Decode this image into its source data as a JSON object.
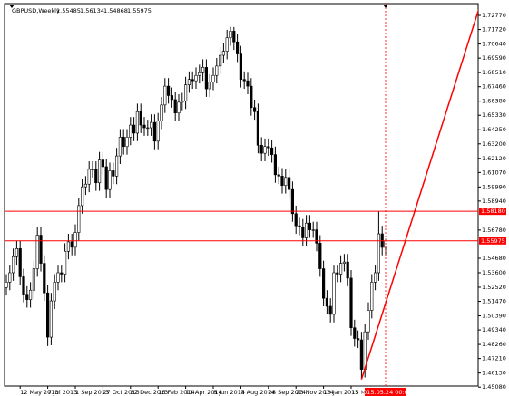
{
  "chart_data": {
    "type": "candlestick",
    "title": "GBPUSD,Weekly",
    "categories": [
      null,
      null,
      null,
      null,
      "12 May 2013",
      null,
      null,
      null,
      null,
      null,
      null,
      null,
      "7 Jul 2013",
      null,
      null,
      null,
      null,
      null,
      null,
      null,
      "1 Sep 2013",
      null,
      null,
      null,
      null,
      null,
      null,
      null,
      "27 Oct 2013",
      null,
      null,
      null,
      null,
      null,
      null,
      null,
      "22 Dec 2013",
      null,
      null,
      null,
      null,
      null,
      null,
      null,
      "16 Feb 2014",
      null,
      null,
      null,
      null,
      null,
      null,
      null,
      "13 Apr 2014",
      null,
      null,
      null,
      null,
      null,
      null,
      null,
      "8 Jun 2014",
      null,
      null,
      null,
      null,
      null,
      null,
      null,
      "3 Aug 2014",
      null,
      null,
      null,
      null,
      null,
      null,
      null,
      "28 Sep 2014",
      null,
      null,
      null,
      null,
      null,
      null,
      null,
      "23 Nov 2014",
      null,
      null,
      null,
      null,
      null,
      null,
      null,
      "18 Jan 2015",
      null,
      null,
      null,
      null,
      null,
      null,
      null,
      "15 Mar 2015",
      null,
      null,
      null,
      null,
      null,
      null,
      null,
      null,
      null,
      "2015.05.24 00:00"
    ],
    "open": [
      1.525,
      1.529,
      1.536,
      1.548,
      1.554,
      1.533,
      1.52,
      1.516,
      1.523,
      1.539,
      1.564,
      1.543,
      1.521,
      1.488,
      1.515,
      1.529,
      1.536,
      1.535,
      1.552,
      1.559,
      1.555,
      1.566,
      1.586,
      1.6,
      1.602,
      1.613,
      1.613,
      1.603,
      1.62,
      1.615,
      1.598,
      1.612,
      1.608,
      1.623,
      1.637,
      1.63,
      1.637,
      1.646,
      1.64,
      1.656,
      1.646,
      1.644,
      1.644,
      1.648,
      1.634,
      1.649,
      1.661,
      1.675,
      1.668,
      1.665,
      1.655,
      1.663,
      1.664,
      1.676,
      1.68,
      1.679,
      1.683,
      1.685,
      1.689,
      1.673,
      1.678,
      1.683,
      1.69,
      1.698,
      1.701,
      1.711,
      1.716,
      1.708,
      1.699,
      1.68,
      1.679,
      1.675,
      1.659,
      1.656,
      1.631,
      1.625,
      1.63,
      1.629,
      1.624,
      1.609,
      1.608,
      1.601,
      1.607,
      1.598,
      1.58,
      1.571,
      1.57,
      1.562,
      1.573,
      1.568,
      1.568,
      1.558,
      1.539,
      1.517,
      1.511,
      1.505,
      1.536,
      1.535,
      1.543,
      1.544,
      1.532,
      1.495,
      1.487,
      1.486,
      1.464,
      1.492,
      1.508,
      1.529,
      1.536,
      1.565,
      1.55485
    ],
    "high": [
      1.535,
      1.542,
      1.554,
      1.56,
      1.56,
      1.539,
      1.526,
      1.529,
      1.545,
      1.57,
      1.57,
      1.549,
      1.527,
      1.521,
      1.535,
      1.542,
      1.542,
      1.558,
      1.565,
      1.565,
      1.572,
      1.592,
      1.606,
      1.608,
      1.619,
      1.619,
      1.619,
      1.626,
      1.626,
      1.621,
      1.618,
      1.618,
      1.629,
      1.643,
      1.643,
      1.643,
      1.652,
      1.652,
      1.662,
      1.662,
      1.652,
      1.65,
      1.654,
      1.654,
      1.655,
      1.667,
      1.681,
      1.681,
      1.674,
      1.671,
      1.669,
      1.67,
      1.682,
      1.686,
      1.686,
      1.689,
      1.691,
      1.695,
      1.695,
      1.684,
      1.689,
      1.696,
      1.704,
      1.707,
      1.717,
      1.7192,
      1.719,
      1.714,
      1.705,
      1.686,
      1.685,
      1.681,
      1.665,
      1.662,
      1.637,
      1.636,
      1.636,
      1.635,
      1.63,
      1.615,
      1.614,
      1.613,
      1.613,
      1.604,
      1.586,
      1.577,
      1.576,
      1.579,
      1.579,
      1.574,
      1.574,
      1.564,
      1.545,
      1.523,
      1.517,
      1.542,
      1.542,
      1.549,
      1.55,
      1.55,
      1.538,
      1.501,
      1.493,
      1.492,
      1.498,
      1.514,
      1.535,
      1.542,
      1.5815,
      1.571,
      1.56134
    ],
    "low": [
      1.519,
      1.523,
      1.53,
      1.542,
      1.527,
      1.514,
      1.51,
      1.51,
      1.517,
      1.533,
      1.537,
      1.515,
      1.4814,
      1.482,
      1.509,
      1.523,
      1.529,
      1.529,
      1.546,
      1.549,
      1.549,
      1.56,
      1.58,
      1.594,
      1.596,
      1.607,
      1.597,
      1.597,
      1.609,
      1.592,
      1.592,
      1.602,
      1.602,
      1.617,
      1.624,
      1.624,
      1.631,
      1.634,
      1.634,
      1.64,
      1.638,
      1.638,
      1.638,
      1.628,
      1.628,
      1.643,
      1.655,
      1.662,
      1.659,
      1.649,
      1.649,
      1.657,
      1.658,
      1.67,
      1.673,
      1.673,
      1.677,
      1.679,
      1.667,
      1.667,
      1.672,
      1.677,
      1.684,
      1.692,
      1.695,
      1.705,
      1.702,
      1.693,
      1.674,
      1.673,
      1.669,
      1.653,
      1.65,
      1.625,
      1.619,
      1.619,
      1.623,
      1.618,
      1.603,
      1.602,
      1.595,
      1.595,
      1.592,
      1.574,
      1.565,
      1.564,
      1.556,
      1.556,
      1.562,
      1.562,
      1.552,
      1.533,
      1.511,
      1.505,
      1.499,
      1.499,
      1.529,
      1.529,
      1.537,
      1.526,
      1.489,
      1.481,
      1.48,
      1.4566,
      1.458,
      1.486,
      1.502,
      1.523,
      1.53,
      1.549,
      1.54868
    ],
    "close": [
      1.529,
      1.536,
      1.548,
      1.554,
      1.533,
      1.52,
      1.516,
      1.523,
      1.539,
      1.564,
      1.543,
      1.521,
      1.488,
      1.515,
      1.529,
      1.536,
      1.535,
      1.552,
      1.559,
      1.555,
      1.566,
      1.586,
      1.6,
      1.602,
      1.613,
      1.613,
      1.603,
      1.62,
      1.615,
      1.598,
      1.612,
      1.608,
      1.623,
      1.637,
      1.63,
      1.637,
      1.646,
      1.64,
      1.656,
      1.646,
      1.644,
      1.644,
      1.648,
      1.634,
      1.649,
      1.661,
      1.675,
      1.668,
      1.665,
      1.655,
      1.663,
      1.664,
      1.676,
      1.68,
      1.679,
      1.683,
      1.685,
      1.689,
      1.673,
      1.678,
      1.683,
      1.69,
      1.698,
      1.701,
      1.711,
      1.716,
      1.708,
      1.699,
      1.68,
      1.679,
      1.675,
      1.659,
      1.656,
      1.631,
      1.625,
      1.63,
      1.629,
      1.624,
      1.609,
      1.608,
      1.601,
      1.607,
      1.598,
      1.58,
      1.571,
      1.57,
      1.562,
      1.573,
      1.568,
      1.568,
      1.558,
      1.539,
      1.517,
      1.511,
      1.505,
      1.536,
      1.535,
      1.543,
      1.544,
      1.532,
      1.495,
      1.487,
      1.486,
      1.464,
      1.492,
      1.508,
      1.529,
      1.536,
      1.565,
      1.5549,
      1.55975
    ],
    "ylim": [
      1.4516,
      1.7365
    ],
    "yticks": [
      {
        "value": 1.7277,
        "label": "1.72770"
      },
      {
        "value": 1.7172,
        "label": "1.71720"
      },
      {
        "value": 1.7064,
        "label": "1.70640"
      },
      {
        "value": 1.6959,
        "label": "1.69590"
      },
      {
        "value": 1.6851,
        "label": "1.68510"
      },
      {
        "value": 1.6746,
        "label": "1.67460"
      },
      {
        "value": 1.6638,
        "label": "1.66380"
      },
      {
        "value": 1.6533,
        "label": "1.65330"
      },
      {
        "value": 1.6425,
        "label": "1.64250"
      },
      {
        "value": 1.632,
        "label": "1.63200"
      },
      {
        "value": 1.6212,
        "label": "1.62120"
      },
      {
        "value": 1.6107,
        "label": "1.61070"
      },
      {
        "value": 1.5999,
        "label": "1.59990"
      },
      {
        "value": 1.5894,
        "label": "1.58940"
      },
      {
        "value": 1.5678,
        "label": "1.56780"
      },
      {
        "value": 1.5468,
        "label": "1.54680"
      },
      {
        "value": 1.536,
        "label": "1.53600"
      },
      {
        "value": 1.5252,
        "label": "1.52520"
      },
      {
        "value": 1.5147,
        "label": "1.51470"
      },
      {
        "value": 1.5039,
        "label": "1.50390"
      },
      {
        "value": 1.4934,
        "label": "1.49340"
      },
      {
        "value": 1.4826,
        "label": "1.48260"
      },
      {
        "value": 1.4721,
        "label": "1.47210"
      },
      {
        "value": 1.4613,
        "label": "1.46130"
      },
      {
        "value": 1.4508,
        "label": "1.45080"
      }
    ],
    "hlines": [
      {
        "value": 1.5818,
        "label": "1.58180"
      },
      1.55975
    ],
    "hline_color": "#ff0000",
    "trendline": {
      "x": [
        103,
        137.2
      ],
      "y": [
        1.4566,
        1.7338
      ],
      "color": "#ff0000"
    },
    "cursor_line": true,
    "up_color": "#ffffff",
    "down_color": "#000000",
    "outline_color": "#000000"
  }
}
